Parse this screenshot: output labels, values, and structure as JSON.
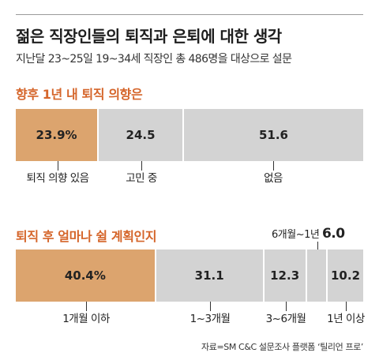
{
  "headline": "젊은 직장인들의 퇴직과 은퇴에 대한 생각",
  "subtitle": "지난달 23~25일 19~34세 직장인 총 486명을 대상으로 설문",
  "colors": {
    "highlight": "#dca46e",
    "neutral": "#d3d3d3",
    "title_accent": "#d5652a"
  },
  "chart_data": [
    {
      "type": "bar",
      "stacked": true,
      "title": "향후 1년 내 퇴직 의향은",
      "unit": "%",
      "categories": [
        "퇴직 의향 있음",
        "고민 중",
        "없음"
      ],
      "values": [
        23.9,
        24.5,
        51.6
      ],
      "value_labels": [
        "23.9%",
        "24.5",
        "51.6"
      ],
      "highlight_index": 0
    },
    {
      "type": "bar",
      "stacked": true,
      "title": "퇴직 후 얼마나 쉴 계획인지",
      "unit": "%",
      "categories": [
        "1개월 이하",
        "1~3개월",
        "3~6개월",
        "6개월~1년",
        "1년 이상"
      ],
      "values": [
        40.4,
        31.1,
        12.3,
        6.0,
        10.2
      ],
      "value_labels": [
        "40.4%",
        "31.1",
        "12.3",
        "",
        "10.2"
      ],
      "callout": {
        "category": "6개월~1년",
        "value": "6.0"
      },
      "highlight_index": 0
    }
  ],
  "source": "자료=SM C&C 설문조사 플랫폼 ‘틸리언 프로’"
}
